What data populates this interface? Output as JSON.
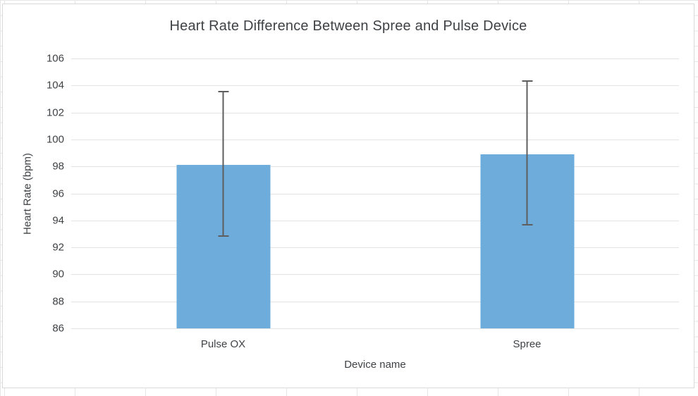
{
  "chart_data": {
    "type": "bar",
    "title": "Heart Rate Difference Between Spree and Pulse Device",
    "xlabel": "Device name",
    "ylabel": "Heart Rate (bpm)",
    "categories": [
      "Pulse OX",
      "Spree"
    ],
    "values": [
      98.1,
      98.9
    ],
    "error_upper": [
      103.6,
      104.4
    ],
    "error_lower": [
      92.8,
      93.6
    ],
    "ylim": [
      86,
      106
    ],
    "yticks": [
      86,
      88,
      90,
      92,
      94,
      96,
      98,
      100,
      102,
      104,
      106
    ],
    "grid": "horizontal",
    "legend": "none",
    "colors": {
      "bar_fill": "#6EACDB",
      "error_bar": "#5E5E5E",
      "gridline": "#E3E3E3",
      "axis_line": "#DCDCDC",
      "text": "#3F4245",
      "card_border": "#D9D9D9",
      "sheet_grid": "#E6E6E6"
    }
  }
}
